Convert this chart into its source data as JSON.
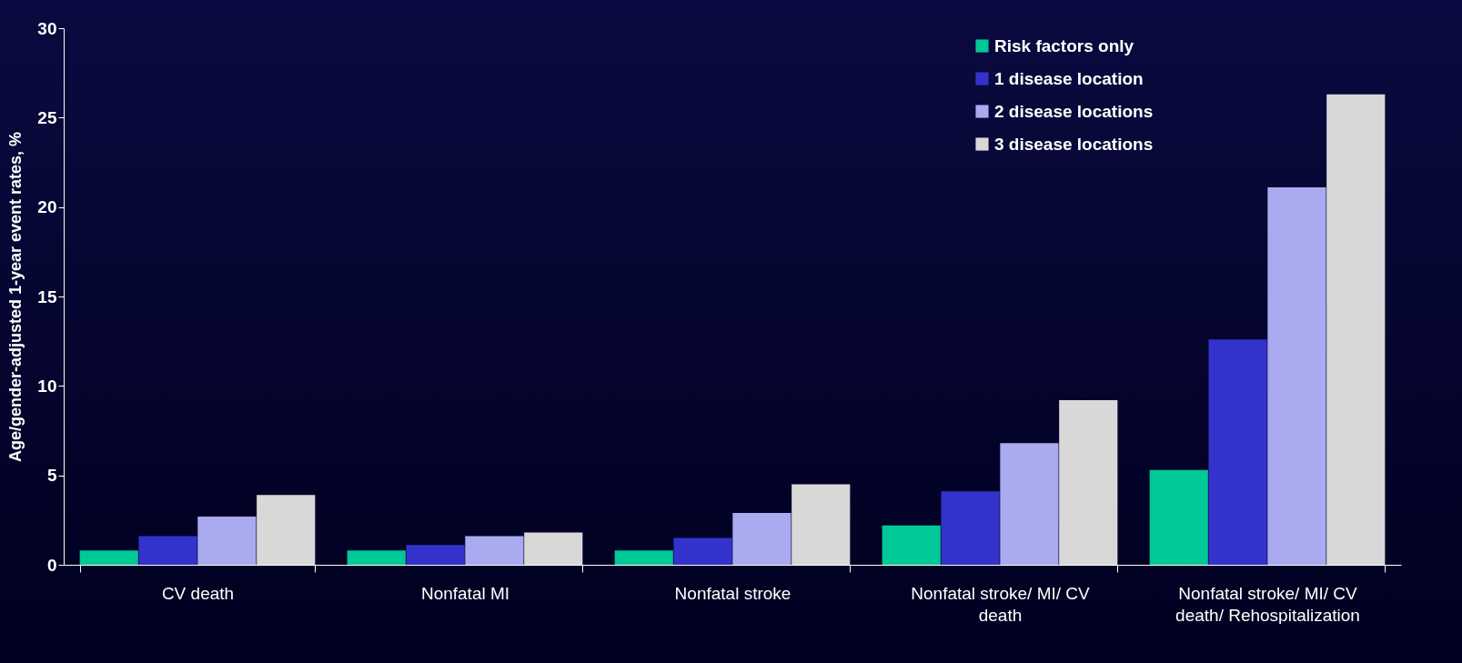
{
  "chart_data": {
    "type": "bar",
    "ylabel": "Age/gender-adjusted 1-year event rates, %",
    "categories": [
      "CV death",
      "Nonfatal MI",
      "Nonfatal stroke",
      "Nonfatal stroke/ MI/ CV death",
      "Nonfatal stroke/ MI/ CV death/ Rehospitalization"
    ],
    "series": [
      {
        "name": "Risk factors only",
        "color": "#00c896",
        "values": [
          0.8,
          0.8,
          0.8,
          2.2,
          5.3
        ]
      },
      {
        "name": "1 disease location",
        "color": "#3333cc",
        "values": [
          1.6,
          1.1,
          1.5,
          4.1,
          12.6
        ]
      },
      {
        "name": "2 disease locations",
        "color": "#aaaaf0",
        "values": [
          2.7,
          1.6,
          2.9,
          6.8,
          21.1
        ]
      },
      {
        "name": "3 disease locations",
        "color": "#d8d8d8",
        "values": [
          3.9,
          1.8,
          4.5,
          9.2,
          26.3
        ]
      }
    ],
    "ylim": [
      0,
      30
    ],
    "yticks": [
      0,
      5,
      10,
      15,
      20,
      25,
      30
    ],
    "grid": false,
    "legend": "top right"
  }
}
